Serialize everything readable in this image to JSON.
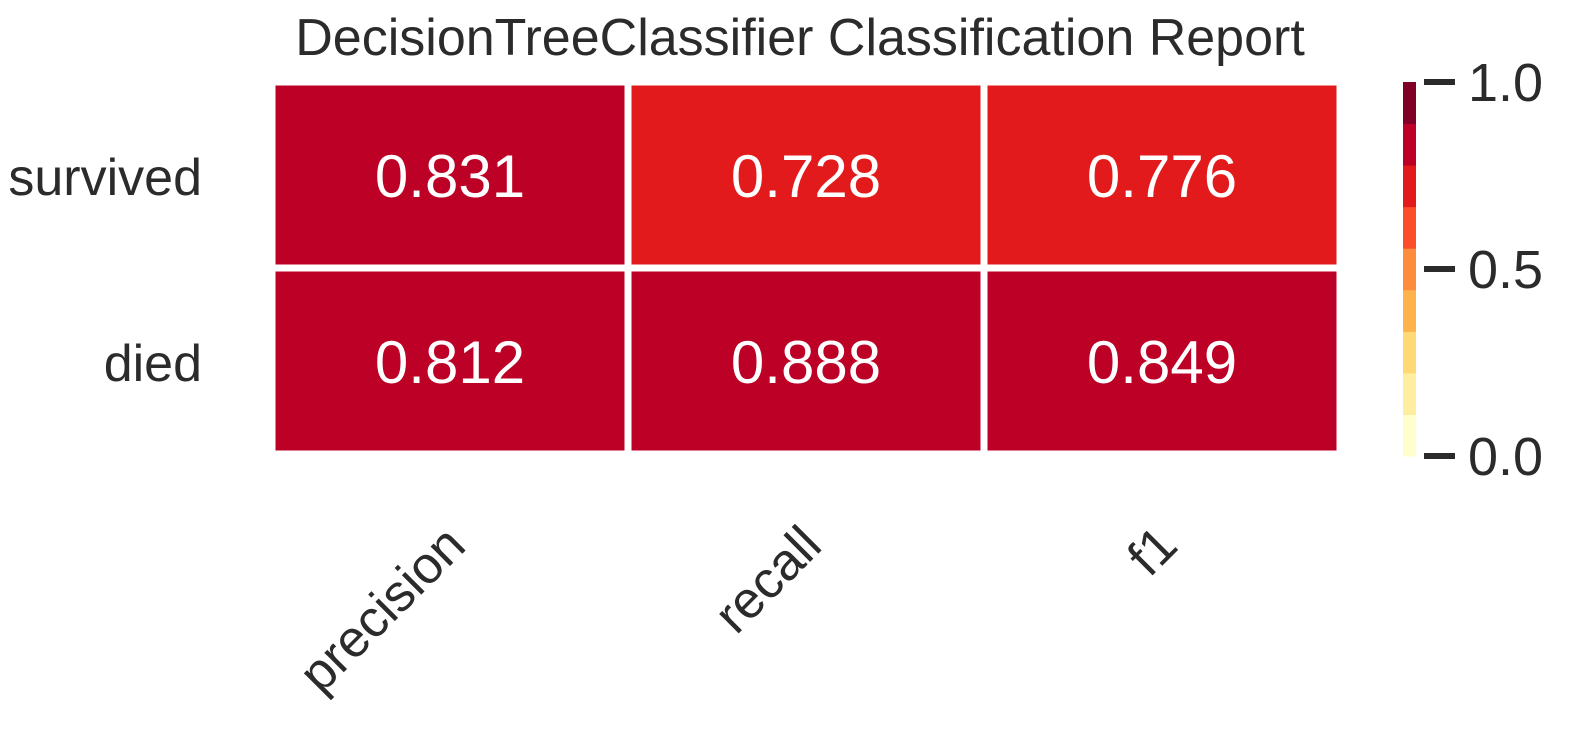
{
  "chart_data": {
    "type": "heatmap",
    "title": "DecisionTreeClassifier Classification Report",
    "rows": [
      "survived",
      "died"
    ],
    "columns": [
      "precision",
      "recall",
      "f1"
    ],
    "values": [
      [
        0.831,
        0.728,
        0.776
      ],
      [
        0.812,
        0.888,
        0.849
      ]
    ],
    "value_labels": [
      [
        "0.831",
        "0.728",
        "0.776"
      ],
      [
        "0.812",
        "0.888",
        "0.849"
      ]
    ],
    "colorbar": {
      "range": [
        0.0,
        1.0
      ],
      "ticks": [
        "0.0",
        "0.5",
        "1.0"
      ],
      "colors": [
        "#ffffcc",
        "#ffeda0",
        "#fed976",
        "#feb24c",
        "#fd8d3c",
        "#fc4e2a",
        "#e31a1c",
        "#bd0026",
        "#800026"
      ]
    }
  }
}
